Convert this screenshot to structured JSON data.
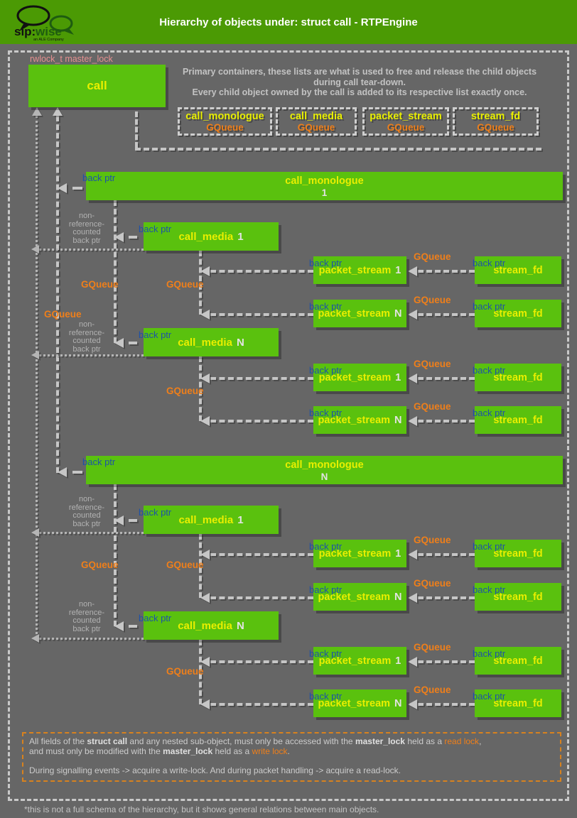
{
  "header": {
    "title": "Hierarchy of objects under: struct call - RTPEngine",
    "logo": {
      "sip": "sip:",
      "wise": "wise",
      "tagline": "an ALE Company"
    }
  },
  "colors": {
    "background": "#666666",
    "header_green": "#4b9a04",
    "box_green": "#5ac10e",
    "title_yellow": "#e9ef00",
    "gqueue_orange": "#ef7f1a",
    "back_ptr_blue": "#1d52a8",
    "lock_pink": "#e59090",
    "note_border_orange": "#d8821e"
  },
  "labels": {
    "master_lock": "rwlock_t master_lock",
    "back_ptr": "back ptr",
    "gqueue": "GQueue",
    "non_ref": "non-\nreference-\ncounted\nback ptr"
  },
  "intro": {
    "line1": "Primary containers, these lists are what is used to free and release the child objects",
    "line2": "during call tear-down.",
    "line3": "Every child object owned by the call is added to its respective list exactly once."
  },
  "containers": [
    {
      "name": "call_monologue",
      "type": "GQueue"
    },
    {
      "name": "call_media",
      "type": "GQueue"
    },
    {
      "name": "packet_stream",
      "type": "GQueue"
    },
    {
      "name": "stream_fd",
      "type": "GQueue"
    }
  ],
  "nodes": {
    "call": {
      "name": "call"
    },
    "monologues": [
      {
        "name": "call_monologue",
        "index": "1"
      },
      {
        "name": "call_monologue",
        "index": "N"
      }
    ],
    "medias": [
      {
        "name": "call_media",
        "index": "1"
      },
      {
        "name": "call_media",
        "index": "N"
      },
      {
        "name": "call_media",
        "index": "1"
      },
      {
        "name": "call_media",
        "index": "N"
      }
    ],
    "packet_streams": [
      {
        "name": "packet_stream",
        "index": "1"
      },
      {
        "name": "packet_stream",
        "index": "N"
      },
      {
        "name": "packet_stream",
        "index": "1"
      },
      {
        "name": "packet_stream",
        "index": "N"
      },
      {
        "name": "packet_stream",
        "index": "1"
      },
      {
        "name": "packet_stream",
        "index": "N"
      },
      {
        "name": "packet_stream",
        "index": "1"
      },
      {
        "name": "packet_stream",
        "index": "N"
      }
    ],
    "stream_fds": [
      {
        "name": "stream_fd"
      },
      {
        "name": "stream_fd"
      },
      {
        "name": "stream_fd"
      },
      {
        "name": "stream_fd"
      },
      {
        "name": "stream_fd"
      },
      {
        "name": "stream_fd"
      },
      {
        "name": "stream_fd"
      },
      {
        "name": "stream_fd"
      }
    ]
  },
  "note": {
    "rows": [
      [
        {
          "t": "All fields of the "
        },
        {
          "t": "struct call",
          "cls": "b"
        },
        {
          "t": " and any nested sub-object, must only be accessed with the "
        },
        {
          "t": "master_lock",
          "cls": "b"
        },
        {
          "t": " held as a "
        },
        {
          "t": "read lock",
          "cls": "o"
        },
        {
          "t": ","
        }
      ],
      [
        {
          "t": "and must only be modified with the "
        },
        {
          "t": "master_lock",
          "cls": "b"
        },
        {
          "t": " held as a "
        },
        {
          "t": "write lock",
          "cls": "o"
        },
        {
          "t": "."
        }
      ],
      [],
      [
        {
          "t": "During signalling events -> acquire a write-lock. And during packet handling -> acquire a read-lock."
        }
      ]
    ]
  },
  "footer": {
    "text": "*this is not a full schema of the hierarchy, but it shows general relations between main objects."
  }
}
